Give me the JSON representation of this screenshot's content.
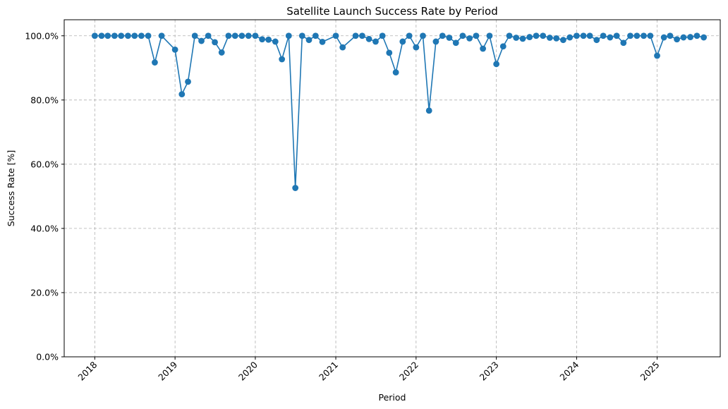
{
  "chart_data": {
    "type": "line",
    "title": "Satellite Launch Success Rate by Period",
    "xlabel": "Period",
    "ylabel": "Success Rate [%]",
    "ylim": [
      0,
      105
    ],
    "xlim": [
      "2017-08-15",
      "2025-10-15"
    ],
    "grid": true,
    "color": "#1f77b4",
    "x_ticks": [
      "2018",
      "2019",
      "2020",
      "2021",
      "2022",
      "2023",
      "2024",
      "2025"
    ],
    "y_ticks": [
      "0.0%",
      "20.0%",
      "40.0%",
      "60.0%",
      "80.0%",
      "100.0%"
    ],
    "series": [
      {
        "x": [
          "2018-01",
          "2018-02",
          "2018-03",
          "2018-04",
          "2018-05",
          "2018-06",
          "2018-07",
          "2018-08",
          "2018-09",
          "2018-10",
          "2018-11",
          "2018-12",
          "2019-01",
          "2019-02",
          "2019-03",
          "2019-04",
          "2019-05",
          "2019-06",
          "2019-07",
          "2019-08",
          "2019-09",
          "2019-10",
          "2019-11",
          "2019-12",
          "2020-01",
          "2020-02",
          "2020-03",
          "2020-04",
          "2020-05",
          "2020-06",
          "2020-07",
          "2020-08",
          "2020-09",
          "2020-10",
          "2020-11",
          "2020-12",
          "2021-01",
          "2021-02",
          "2021-03",
          "2021-04",
          "2021-05",
          "2021-06",
          "2021-07",
          "2021-08",
          "2021-09",
          "2021-10",
          "2021-11",
          "2021-12",
          "2022-01",
          "2022-02",
          "2022-03",
          "2022-04",
          "2022-05",
          "2022-06",
          "2022-07",
          "2022-08",
          "2022-09",
          "2022-10",
          "2022-11",
          "2022-12",
          "2023-01",
          "2023-02",
          "2023-03",
          "2023-04",
          "2023-05",
          "2023-06",
          "2023-07",
          "2023-08",
          "2023-09",
          "2023-10",
          "2023-11",
          "2023-12",
          "2024-01",
          "2024-02",
          "2024-03",
          "2024-04",
          "2024-05",
          "2024-06",
          "2024-07",
          "2024-08",
          "2024-09",
          "2024-10",
          "2024-11",
          "2024-12",
          "2025-01",
          "2025-02",
          "2025-03",
          "2025-04",
          "2025-05",
          "2025-06",
          "2025-07",
          "2025-08"
        ],
        "y": [
          100,
          100,
          100,
          100,
          100,
          100,
          100,
          100,
          100,
          91.7,
          100,
          null,
          95.7,
          81.8,
          85.7,
          100,
          98.4,
          100,
          98.0,
          94.8,
          100,
          100,
          100,
          100,
          100,
          98.9,
          98.8,
          98.2,
          92.7,
          100,
          52.6,
          100,
          98.7,
          100,
          98.1,
          null,
          100,
          96.4,
          null,
          100,
          100,
          99.0,
          98.2,
          100,
          94.7,
          88.6,
          98.2,
          100,
          96.4,
          100,
          76.7,
          98.2,
          100,
          99.4,
          97.8,
          100,
          99.2,
          100,
          96.0,
          100,
          91.2,
          96.7,
          100,
          99.4,
          99.1,
          99.6,
          100,
          100,
          99.4,
          99.2,
          98.7,
          99.5,
          100,
          100,
          100,
          98.7,
          100,
          99.5,
          100,
          97.8,
          100,
          100,
          100,
          100,
          93.8,
          99.5,
          100,
          98.9,
          99.5,
          99.6,
          100,
          99.5
        ]
      }
    ]
  }
}
